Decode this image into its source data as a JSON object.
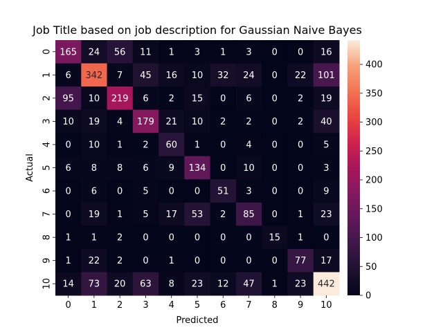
{
  "chart_data": {
    "type": "heatmap",
    "title": "Job Title based on job description for Gaussian Naive Bayes",
    "xlabel": "Predicted",
    "ylabel": "Actual",
    "x_categories": [
      "0",
      "1",
      "2",
      "3",
      "4",
      "5",
      "6",
      "7",
      "8",
      "9",
      "10"
    ],
    "y_categories": [
      "0",
      "1",
      "2",
      "3",
      "4",
      "5",
      "6",
      "7",
      "8",
      "9",
      "10"
    ],
    "values": [
      [
        165,
        24,
        56,
        11,
        1,
        3,
        1,
        3,
        0,
        0,
        16
      ],
      [
        6,
        342,
        7,
        45,
        16,
        10,
        32,
        24,
        0,
        22,
        101
      ],
      [
        95,
        10,
        219,
        6,
        2,
        15,
        0,
        6,
        0,
        2,
        19
      ],
      [
        10,
        19,
        4,
        179,
        21,
        10,
        2,
        2,
        0,
        2,
        40
      ],
      [
        0,
        10,
        1,
        2,
        60,
        1,
        0,
        4,
        0,
        0,
        5
      ],
      [
        6,
        8,
        8,
        6,
        9,
        134,
        0,
        10,
        0,
        0,
        3
      ],
      [
        0,
        6,
        0,
        5,
        0,
        0,
        51,
        3,
        0,
        0,
        9
      ],
      [
        0,
        19,
        1,
        5,
        17,
        53,
        2,
        85,
        0,
        1,
        23
      ],
      [
        1,
        1,
        2,
        0,
        0,
        0,
        0,
        0,
        15,
        1,
        0
      ],
      [
        1,
        22,
        2,
        0,
        1,
        0,
        0,
        0,
        0,
        77,
        17
      ],
      [
        14,
        73,
        20,
        63,
        8,
        23,
        12,
        47,
        1,
        23,
        442
      ]
    ],
    "colormap": "rocket",
    "vmin": 0,
    "vmax": 442,
    "colorbar_ticks": [
      0,
      50,
      100,
      150,
      200,
      250,
      300,
      350,
      400
    ],
    "annotate": true,
    "grid": false
  }
}
